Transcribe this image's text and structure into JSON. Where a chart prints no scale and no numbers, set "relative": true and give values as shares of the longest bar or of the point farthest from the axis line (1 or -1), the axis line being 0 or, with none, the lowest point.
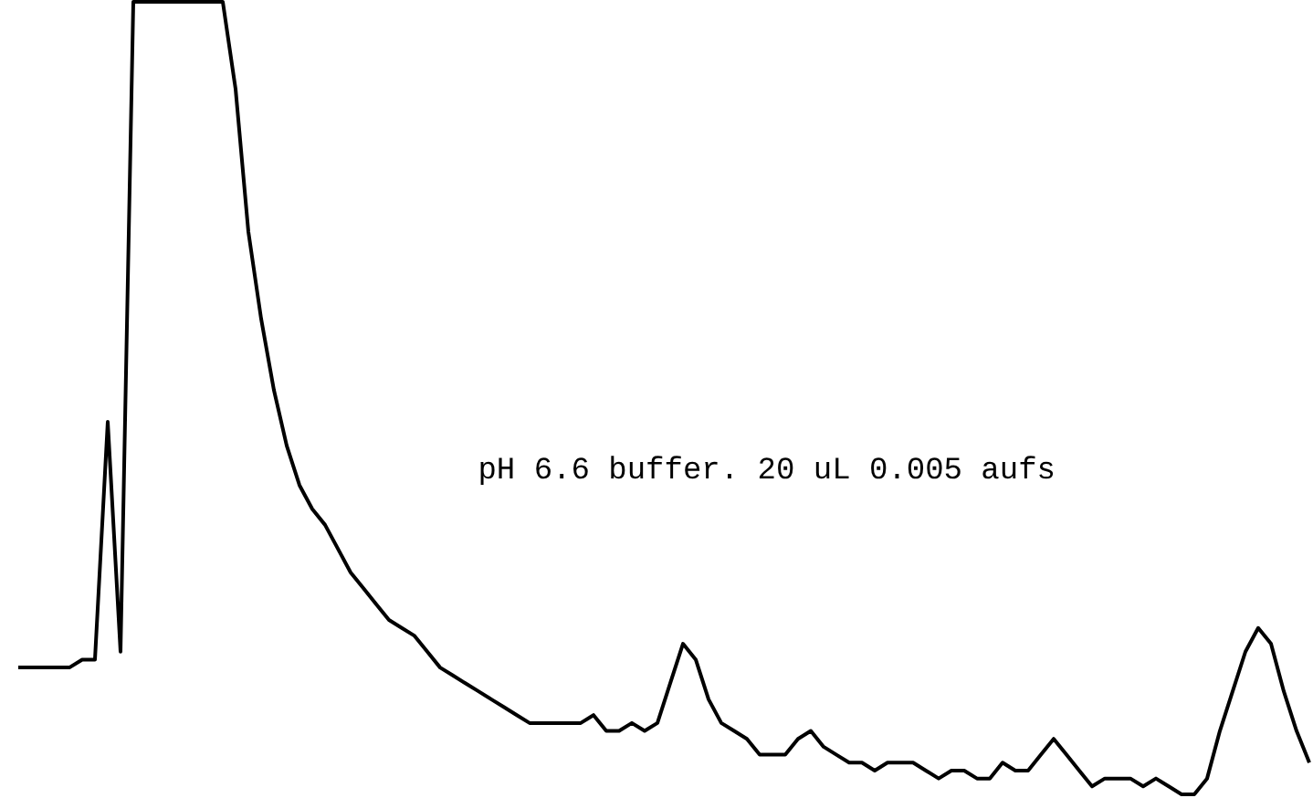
{
  "chart_data": {
    "type": "line",
    "relative": true,
    "marker": "none",
    "line_style": "solid",
    "categories": [
      null,
      null,
      null,
      null,
      null,
      null,
      null,
      null,
      null,
      null,
      null,
      null,
      null,
      null,
      null,
      null,
      null,
      null,
      null,
      null,
      null,
      null,
      null,
      null,
      null,
      null,
      null,
      null,
      null,
      null,
      null,
      null,
      null,
      null,
      null,
      null,
      null,
      null,
      null,
      null,
      null,
      null,
      null,
      null,
      null,
      null,
      null,
      null,
      null,
      null,
      null,
      null,
      null,
      null,
      null,
      null,
      null,
      null,
      null,
      null,
      null,
      null,
      null,
      null,
      null,
      null,
      null,
      null,
      null,
      null,
      null,
      null,
      null,
      null,
      null,
      null,
      null,
      null,
      null,
      null,
      null,
      null,
      null,
      null,
      null,
      null,
      null,
      null,
      null,
      null,
      null,
      null,
      null,
      null,
      null,
      null,
      null,
      null,
      null,
      null,
      null,
      null
    ],
    "series": [
      {
        "color": "#000000",
        "values": [
          0.16,
          0.16,
          0.16,
          0.16,
          0.16,
          0.17,
          0.17,
          0.47,
          0.18,
          1,
          1,
          1,
          1,
          1,
          1,
          1,
          1,
          0.89,
          0.71,
          0.6,
          0.51,
          0.44,
          0.39,
          0.36,
          0.34,
          0.31,
          0.28,
          0.26,
          0.24,
          0.22,
          0.21,
          0.2,
          0.18,
          0.16,
          0.15,
          0.14,
          0.13,
          0.12,
          0.11,
          0.1,
          0.09,
          0.09,
          0.09,
          0.09,
          0.09,
          0.1,
          0.08,
          0.08,
          0.09,
          0.08,
          0.09,
          0.14,
          0.19,
          0.17,
          0.12,
          0.09,
          0.08,
          0.07,
          0.05,
          0.05,
          0.05,
          0.07,
          0.08,
          0.06,
          0.05,
          0.04,
          0.04,
          0.03,
          0.04,
          0.04,
          0.04,
          0.03,
          0.02,
          0.03,
          0.03,
          0.02,
          0.02,
          0.04,
          0.03,
          0.03,
          0.05,
          0.07,
          0.05,
          0.03,
          0.01,
          0.02,
          0.02,
          0.02,
          0.01,
          0.02,
          0.01,
          0,
          0,
          0.02,
          0.08,
          0.13,
          0.18,
          0.21,
          0.19,
          0.13,
          0.08,
          0.04
        ]
      }
    ],
    "annotations": [
      "pH 6.6 buffer. 20 uL 0.005 aufs"
    ]
  }
}
